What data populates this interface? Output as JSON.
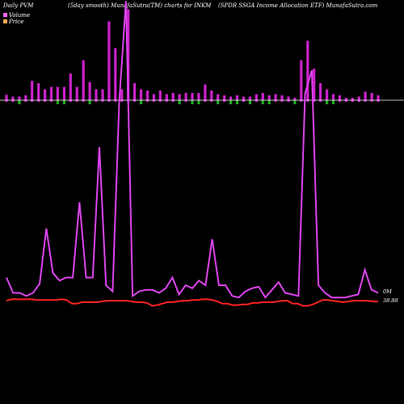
{
  "chart_data": {
    "type": "bar",
    "header": {
      "left": "Daily PVM",
      "center": "(5day smooth) MunafaSutra(TM) charts for INKM",
      "right": "(SPDR SSGA Income   Allocation  ETF) MunafaSutra.com"
    },
    "legend": [
      {
        "name": "Volume",
        "color": "#ff66ff"
      },
      {
        "name": "Price",
        "color": "#ffaa55"
      }
    ],
    "end_labels": {
      "volume": "0M",
      "price": "38.88"
    },
    "colors": {
      "background": "#000000",
      "volume_up": "#cc22cc",
      "volume_down": "#22aa22",
      "volume_line": "#dd44ee",
      "price_line": "#ff2222",
      "baseline": "#ffffff"
    },
    "volume_bars": [
      {
        "v": 9,
        "d": 1
      },
      {
        "v": 6,
        "d": 1
      },
      {
        "v": 6,
        "d": -1
      },
      {
        "v": 8,
        "d": 1
      },
      {
        "v": 32,
        "d": 1
      },
      {
        "v": 28,
        "d": 1
      },
      {
        "v": 18,
        "d": 1
      },
      {
        "v": 22,
        "d": 1
      },
      {
        "v": 22,
        "d": -1
      },
      {
        "v": 22,
        "d": -1
      },
      {
        "v": 44,
        "d": 1
      },
      {
        "v": 22,
        "d": 1
      },
      {
        "v": 66,
        "d": 1
      },
      {
        "v": 30,
        "d": -1
      },
      {
        "v": 18,
        "d": 1
      },
      {
        "v": 18,
        "d": 1
      },
      {
        "v": 130,
        "d": 1
      },
      {
        "v": 86,
        "d": 1
      },
      {
        "v": 18,
        "d": 1
      },
      {
        "v": 150,
        "d": 1
      },
      {
        "v": 28,
        "d": 1
      },
      {
        "v": 18,
        "d": -1
      },
      {
        "v": 16,
        "d": 1
      },
      {
        "v": 10,
        "d": 1
      },
      {
        "v": 16,
        "d": 1
      },
      {
        "v": 10,
        "d": 1
      },
      {
        "v": 12,
        "d": 1
      },
      {
        "v": 10,
        "d": -1
      },
      {
        "v": 12,
        "d": 1
      },
      {
        "v": 12,
        "d": -1
      },
      {
        "v": 12,
        "d": -1
      },
      {
        "v": 26,
        "d": 1
      },
      {
        "v": 16,
        "d": 1
      },
      {
        "v": 10,
        "d": -1
      },
      {
        "v": 8,
        "d": 1
      },
      {
        "v": 6,
        "d": -1
      },
      {
        "v": 8,
        "d": -1
      },
      {
        "v": 6,
        "d": 1
      },
      {
        "v": 6,
        "d": -1
      },
      {
        "v": 10,
        "d": 1
      },
      {
        "v": 12,
        "d": -1
      },
      {
        "v": 8,
        "d": -1
      },
      {
        "v": 10,
        "d": 1
      },
      {
        "v": 8,
        "d": 1
      },
      {
        "v": 6,
        "d": 1
      },
      {
        "v": 4,
        "d": -1
      },
      {
        "v": 66,
        "d": 1
      },
      {
        "v": 98,
        "d": 1
      },
      {
        "v": 52,
        "d": 1
      },
      {
        "v": 28,
        "d": 1
      },
      {
        "v": 18,
        "d": -1
      },
      {
        "v": 10,
        "d": -1
      },
      {
        "v": 8,
        "d": 1
      },
      {
        "v": 4,
        "d": 1
      },
      {
        "v": 4,
        "d": 1
      },
      {
        "v": 6,
        "d": 1
      },
      {
        "v": 14,
        "d": 1
      },
      {
        "v": 12,
        "d": 1
      },
      {
        "v": 8,
        "d": 1
      }
    ],
    "volume_line": [
      30,
      10,
      10,
      6,
      10,
      22,
      94,
      36,
      26,
      30,
      30,
      128,
      30,
      30,
      200,
      20,
      12,
      260,
      390,
      6,
      12,
      14,
      14,
      10,
      16,
      30,
      8,
      20,
      16,
      26,
      20,
      80,
      20,
      20,
      6,
      4,
      12,
      16,
      18,
      4,
      14,
      24,
      10,
      8,
      6,
      270,
      300,
      20,
      10,
      4,
      4,
      4,
      6,
      8,
      40,
      14,
      10
    ],
    "price_line": [
      2,
      4,
      4,
      4,
      4,
      4,
      3,
      3,
      3,
      3,
      3,
      4,
      3,
      -2,
      -2,
      0,
      0,
      0,
      0,
      1,
      2,
      2,
      2,
      2,
      2,
      1,
      0,
      0,
      -1,
      -5,
      -4,
      -2,
      0,
      0,
      1,
      2,
      2,
      3,
      3,
      4,
      4,
      3,
      1,
      -2,
      -2,
      -4,
      -4,
      -3,
      -3,
      -1,
      -1,
      0,
      0,
      0,
      1,
      2,
      2,
      -2,
      -2,
      -5,
      -5,
      -3,
      0,
      3,
      3,
      2,
      1,
      0,
      1,
      2,
      2,
      2,
      2,
      1,
      1
    ]
  }
}
